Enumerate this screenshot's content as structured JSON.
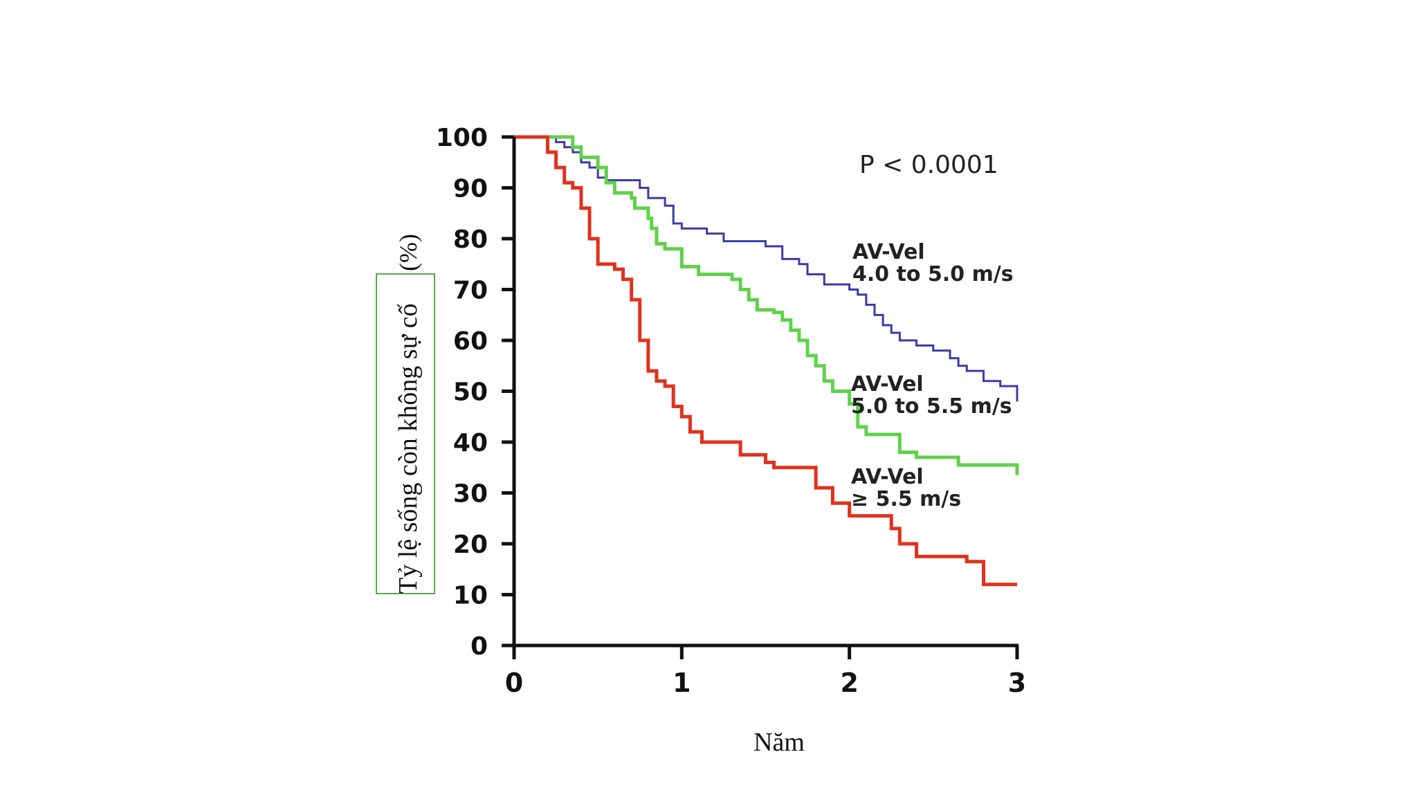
{
  "chart_data": {
    "type": "line",
    "subtype": "step (Kaplan-Meier)",
    "xlabel": "Năm",
    "ylabel": "Tỷ lệ sống còn không sự cố",
    "ylabel_unit": "(%)",
    "xlim": [
      0,
      3
    ],
    "ylim": [
      0,
      100
    ],
    "x_ticks": [
      "0",
      "1",
      "2",
      "3"
    ],
    "y_ticks": [
      "0",
      "10",
      "20",
      "30",
      "40",
      "50",
      "60",
      "70",
      "80",
      "90",
      "100"
    ],
    "annotation": "P < 0.0001",
    "grid": false,
    "series": [
      {
        "name": "AV-Vel 4.0 to 5.0 m/s",
        "label_line1": "AV-Vel",
        "label_line2": "4.0 to 5.0 m/s",
        "color": "#3a3aa8",
        "points": [
          [
            0,
            100
          ],
          [
            0.2,
            100
          ],
          [
            0.25,
            99
          ],
          [
            0.3,
            98
          ],
          [
            0.35,
            97
          ],
          [
            0.4,
            95
          ],
          [
            0.45,
            94
          ],
          [
            0.5,
            92
          ],
          [
            0.55,
            91.5
          ],
          [
            0.7,
            91.5
          ],
          [
            0.75,
            90
          ],
          [
            0.8,
            88
          ],
          [
            0.9,
            86.5
          ],
          [
            0.95,
            83
          ],
          [
            1.0,
            82
          ],
          [
            1.15,
            81
          ],
          [
            1.25,
            79.5
          ],
          [
            1.5,
            78.5
          ],
          [
            1.6,
            76
          ],
          [
            1.7,
            75
          ],
          [
            1.75,
            73
          ],
          [
            1.85,
            71
          ],
          [
            2.0,
            70
          ],
          [
            2.05,
            69
          ],
          [
            2.1,
            67
          ],
          [
            2.15,
            65
          ],
          [
            2.2,
            63
          ],
          [
            2.25,
            61.5
          ],
          [
            2.3,
            60
          ],
          [
            2.4,
            59
          ],
          [
            2.5,
            58
          ],
          [
            2.6,
            56.5
          ],
          [
            2.65,
            55
          ],
          [
            2.7,
            54
          ],
          [
            2.8,
            52
          ],
          [
            2.9,
            51
          ],
          [
            3.0,
            48
          ]
        ]
      },
      {
        "name": "AV-Vel 5.0 to 5.5 m/s",
        "label_line1": "AV-Vel",
        "label_line2": "5.0 to 5.5 m/s",
        "color": "#5fd14a",
        "points": [
          [
            0,
            100
          ],
          [
            0.3,
            100
          ],
          [
            0.35,
            98
          ],
          [
            0.4,
            96
          ],
          [
            0.5,
            94
          ],
          [
            0.55,
            91
          ],
          [
            0.6,
            89
          ],
          [
            0.7,
            88
          ],
          [
            0.72,
            86
          ],
          [
            0.8,
            84
          ],
          [
            0.82,
            82
          ],
          [
            0.85,
            79
          ],
          [
            0.9,
            78
          ],
          [
            1.0,
            74.5
          ],
          [
            1.1,
            73
          ],
          [
            1.3,
            72
          ],
          [
            1.35,
            70
          ],
          [
            1.4,
            68
          ],
          [
            1.45,
            66
          ],
          [
            1.55,
            65.5
          ],
          [
            1.6,
            64
          ],
          [
            1.65,
            62
          ],
          [
            1.7,
            60
          ],
          [
            1.75,
            57
          ],
          [
            1.8,
            55
          ],
          [
            1.85,
            52
          ],
          [
            1.9,
            50
          ],
          [
            2.0,
            47.5
          ],
          [
            2.05,
            43
          ],
          [
            2.1,
            41.5
          ],
          [
            2.2,
            41.5
          ],
          [
            2.3,
            38
          ],
          [
            2.4,
            37
          ],
          [
            2.5,
            37
          ],
          [
            2.65,
            35.5
          ],
          [
            2.9,
            35.5
          ],
          [
            3.0,
            33.5
          ]
        ]
      },
      {
        "name": "AV-Vel ≥ 5.5 m/s",
        "label_line1": "AV-Vel",
        "label_line2": "≥ 5.5 m/s",
        "color": "#e0321e",
        "points": [
          [
            0,
            100
          ],
          [
            0.15,
            100
          ],
          [
            0.2,
            97
          ],
          [
            0.25,
            94
          ],
          [
            0.3,
            91
          ],
          [
            0.35,
            90
          ],
          [
            0.4,
            86
          ],
          [
            0.45,
            80
          ],
          [
            0.5,
            75
          ],
          [
            0.6,
            74
          ],
          [
            0.65,
            72
          ],
          [
            0.7,
            68
          ],
          [
            0.75,
            60
          ],
          [
            0.8,
            54
          ],
          [
            0.85,
            52
          ],
          [
            0.9,
            51
          ],
          [
            0.95,
            47
          ],
          [
            1.0,
            45
          ],
          [
            1.05,
            42
          ],
          [
            1.12,
            40
          ],
          [
            1.3,
            40
          ],
          [
            1.35,
            37.5
          ],
          [
            1.5,
            36
          ],
          [
            1.55,
            35
          ],
          [
            1.75,
            35
          ],
          [
            1.8,
            31
          ],
          [
            1.9,
            28
          ],
          [
            2.0,
            25.5
          ],
          [
            2.1,
            25.5
          ],
          [
            2.25,
            23
          ],
          [
            2.3,
            20
          ],
          [
            2.4,
            17.5
          ],
          [
            2.55,
            17.5
          ],
          [
            2.7,
            16.5
          ],
          [
            2.8,
            12
          ],
          [
            3.0,
            12
          ]
        ]
      }
    ]
  }
}
